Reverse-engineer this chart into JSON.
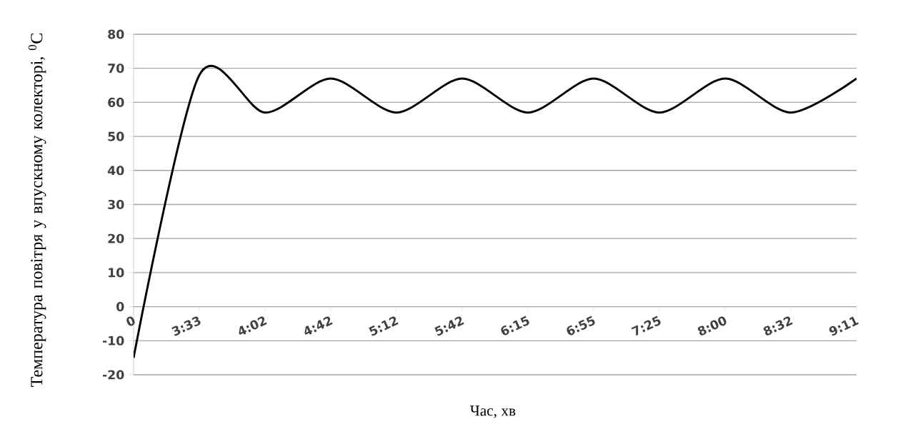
{
  "chart_data": {
    "type": "line",
    "xlabel": "Час, хв",
    "ylabel": "Температура повітря у впускному колекторі, $^{0}$С",
    "categories": [
      "0",
      "3:33",
      "4:02",
      "4:42",
      "5:12",
      "5:42",
      "6:15",
      "6:55",
      "7:25",
      "8:00",
      "8:32",
      "9:11"
    ],
    "values": [
      -15,
      68,
      57,
      67,
      57,
      67,
      57,
      67,
      57,
      67,
      57,
      67
    ],
    "color": "#000000",
    "ylim": [
      -20,
      80
    ],
    "yticks": [
      -20,
      -10,
      0,
      10,
      20,
      30,
      40,
      50,
      60,
      70,
      80
    ],
    "grid": "y",
    "line_style": "solid"
  }
}
